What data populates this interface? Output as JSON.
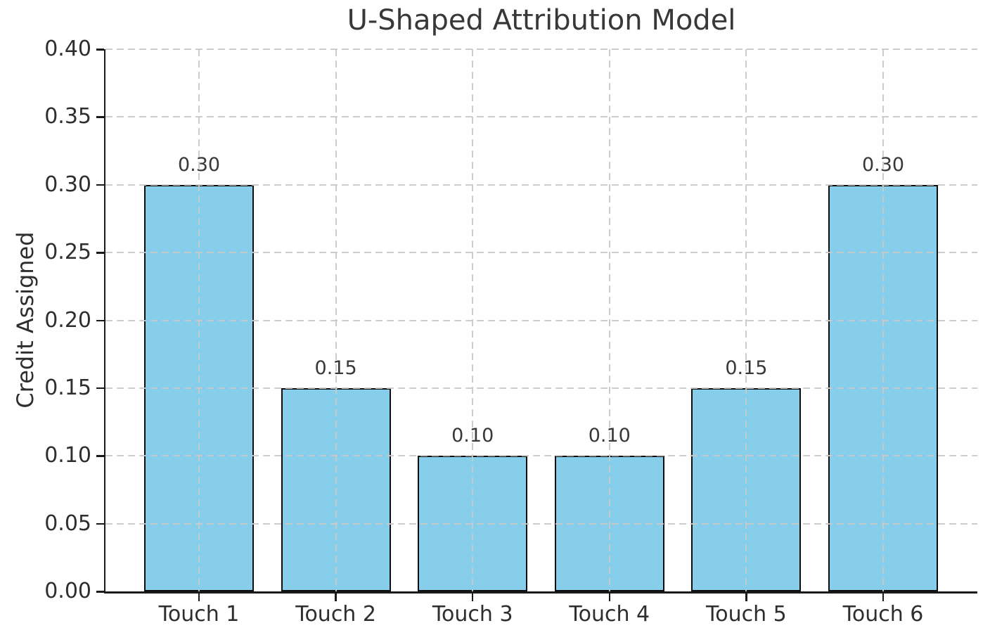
{
  "chart_data": {
    "type": "bar",
    "title": "U-Shaped Attribution Model",
    "xlabel": "",
    "ylabel": "Credit Assigned",
    "categories": [
      "Touch 1",
      "Touch 2",
      "Touch 3",
      "Touch 4",
      "Touch 5",
      "Touch 6"
    ],
    "values": [
      0.3,
      0.15,
      0.1,
      0.1,
      0.15,
      0.3
    ],
    "bar_labels": [
      "0.30",
      "0.15",
      "0.10",
      "0.10",
      "0.15",
      "0.30"
    ],
    "ylim": [
      0.0,
      0.4
    ],
    "yticks": [
      0.0,
      0.05,
      0.1,
      0.15,
      0.2,
      0.25,
      0.3,
      0.35,
      0.4
    ],
    "ytick_labels": [
      "0.00",
      "0.05",
      "0.10",
      "0.15",
      "0.20",
      "0.25",
      "0.30",
      "0.35",
      "0.40"
    ],
    "grid": "dashed, both axes, drawn over bars",
    "legend": "none",
    "colors": {
      "bar_fill": "#87CEEB",
      "bar_edge": "#0d0d0d",
      "grid": "#c9c9c9",
      "text": "#2e2e2e",
      "background": "#ffffff"
    }
  }
}
